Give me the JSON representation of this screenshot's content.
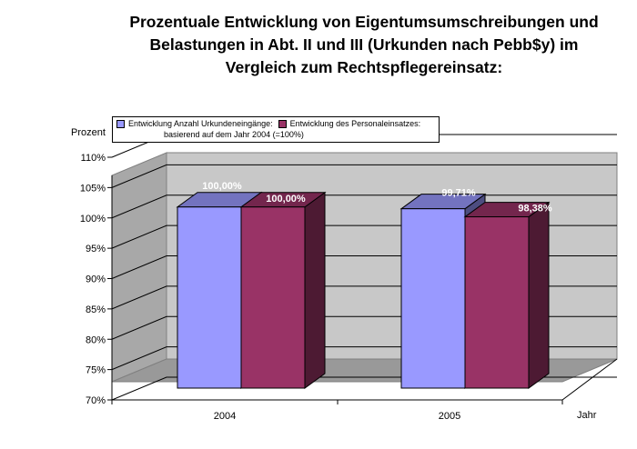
{
  "chart_data": {
    "type": "bar",
    "title_lines": [
      "Prozentuale Entwicklung von Eigentumsumschreibungen und",
      "Belastungen in Abt. II und III (Urkunden nach Pebb$y) im",
      "Vergleich zum Rechtspflegereinsatz:"
    ],
    "ylabel": "Prozent",
    "xlabel": "Jahr",
    "categories": [
      "2004",
      "2005"
    ],
    "series": [
      {
        "name": "Entwicklung Anzahl Urkundeneingänge:",
        "values": [
          100.0,
          99.71
        ],
        "labels": [
          "100,00%",
          "99,71%"
        ],
        "color": "#9999ff"
      },
      {
        "name": "Entwicklung des Personaleinsatzes:",
        "values": [
          100.0,
          98.38
        ],
        "labels": [
          "100,00%",
          "98,38%"
        ],
        "color": "#993366"
      }
    ],
    "legend_note": "basierend auf dem Jahr 2004 (=100%)",
    "ylim": [
      70,
      110
    ],
    "yticks": [
      "70%",
      "75%",
      "80%",
      "85%",
      "90%",
      "95%",
      "100%",
      "105%",
      "110%"
    ],
    "grid": true,
    "legend_position": "top"
  }
}
